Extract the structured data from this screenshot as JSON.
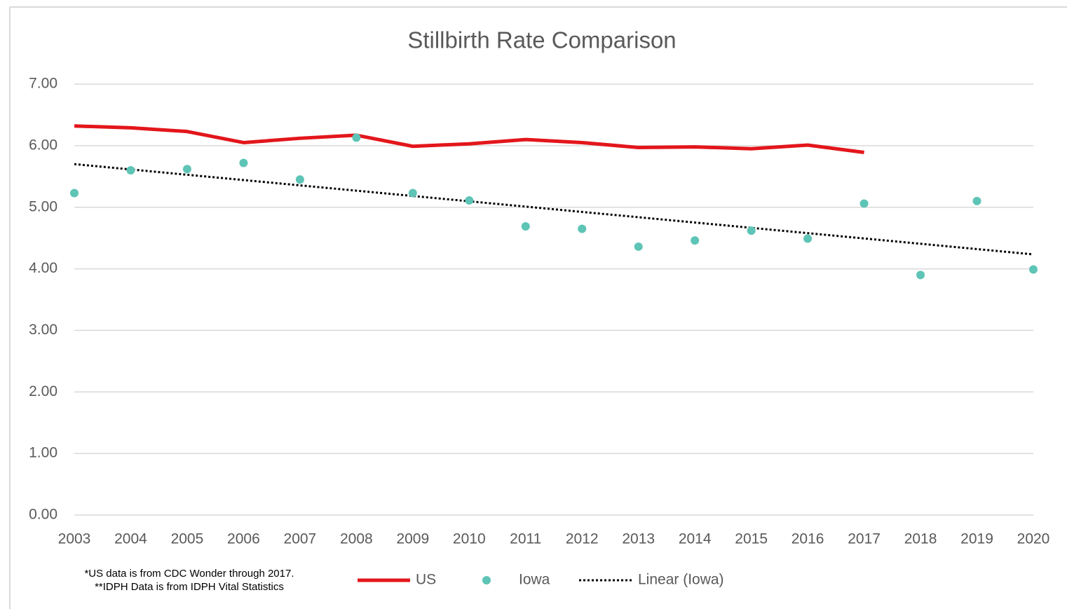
{
  "chart_data": {
    "type": "line",
    "title": "Stillbirth Rate Comparison",
    "categories": [
      "2003",
      "2004",
      "2005",
      "2006",
      "2007",
      "2008",
      "2009",
      "2010",
      "2011",
      "2012",
      "2013",
      "2014",
      "2015",
      "2016",
      "2017",
      "2018",
      "2019",
      "2020"
    ],
    "series": [
      {
        "name": "US",
        "color": "#e3161b",
        "style": "line",
        "values": [
          6.32,
          6.29,
          6.23,
          6.05,
          6.12,
          6.17,
          5.99,
          6.03,
          6.1,
          6.05,
          5.97,
          5.98,
          5.95,
          6.01,
          5.89,
          null,
          null,
          null
        ]
      },
      {
        "name": "Iowa",
        "color": "#5ec4b6",
        "style": "markers",
        "values": [
          5.23,
          5.6,
          5.62,
          5.72,
          5.45,
          6.13,
          5.23,
          5.11,
          4.69,
          4.65,
          4.36,
          4.46,
          4.62,
          4.49,
          5.06,
          3.9,
          5.1,
          3.99
        ]
      }
    ],
    "trendline": {
      "name": "Linear (Iowa)",
      "color": "#000000",
      "style": "dotted"
    },
    "ylim": [
      0,
      7
    ],
    "yticks": [
      {
        "value": 0,
        "label": "0.00"
      },
      {
        "value": 1,
        "label": "1.00"
      },
      {
        "value": 2,
        "label": "2.00"
      },
      {
        "value": 3,
        "label": "3.00"
      },
      {
        "value": 4,
        "label": "4.00"
      },
      {
        "value": 5,
        "label": "5.00"
      },
      {
        "value": 6,
        "label": "6.00"
      },
      {
        "value": 7,
        "label": "7.00"
      }
    ],
    "grid": true,
    "legend": "bottom",
    "notes": [
      "*US data is from CDC Wonder through 2017.",
      "**IDPH Data is from IDPH Vital Statistics"
    ]
  }
}
